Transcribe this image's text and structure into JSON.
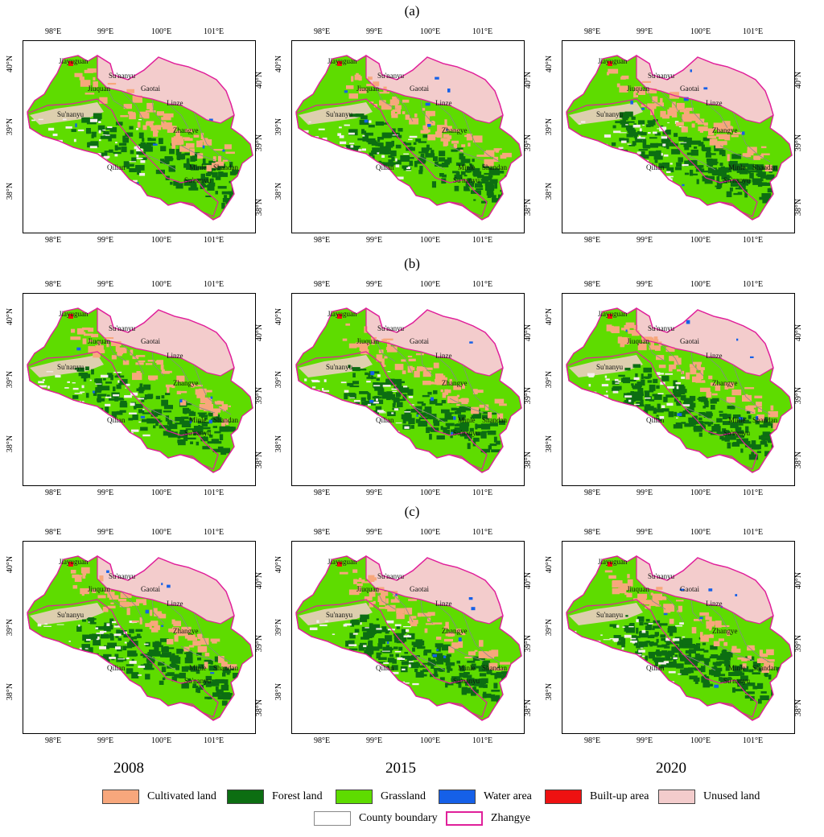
{
  "row_labels": [
    "(a)",
    "(b)",
    "(c)"
  ],
  "years": [
    "2008",
    "2015",
    "2020"
  ],
  "axis_ticks": {
    "lon": [
      "98°E",
      "99°E",
      "100°E",
      "101°E"
    ],
    "lat": [
      "40°N",
      "39°N",
      "38°N"
    ]
  },
  "county_labels": [
    "Jiayuguan",
    "Su'nanyu",
    "Jiuquan",
    "Gaotai",
    "Linze",
    "Su'nanyu",
    "Zhangye",
    "Qilian",
    "Minle",
    "Shandan",
    "Su'nanyu"
  ],
  "legend": {
    "items": [
      {
        "label": "Cultivated land",
        "color": "#f7a77c",
        "key": "cultivated"
      },
      {
        "label": "Forest land",
        "color": "#0c6e12",
        "key": "forest"
      },
      {
        "label": "Grassland",
        "color": "#5edc00",
        "key": "grassland"
      },
      {
        "label": "Water area",
        "color": "#1560e8",
        "key": "water"
      },
      {
        "label": "Built-up area",
        "color": "#ee1111",
        "key": "builtup"
      },
      {
        "label": "Unused land",
        "color": "#f3cccc",
        "key": "unused"
      }
    ],
    "boundaries": [
      {
        "label": "County boundary",
        "color": "#888888",
        "key": "county"
      },
      {
        "label": "Zhangye",
        "color": "#e0209a",
        "key": "zhangye"
      }
    ]
  },
  "colors": {
    "cultivated": "#f7a77c",
    "forest": "#0c6e12",
    "grassland": "#5edc00",
    "water": "#1560e8",
    "builtup": "#ee1111",
    "unused": "#f3cccc",
    "county": "#888888",
    "zhangye": "#e0209a"
  }
}
